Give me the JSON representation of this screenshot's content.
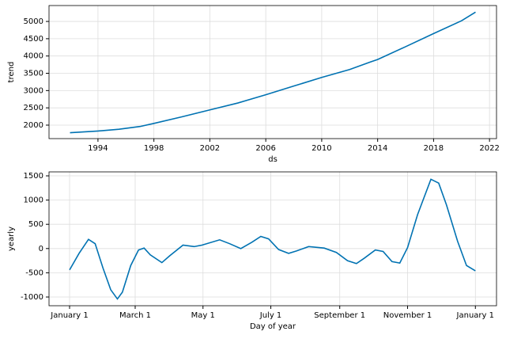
{
  "chart_data": [
    {
      "type": "line",
      "xlabel": "ds",
      "ylabel": "trend",
      "color": "#0072b2",
      "grid": true,
      "x": [
        1992,
        1994,
        1995.5,
        1997,
        1998,
        2000,
        2002,
        2004,
        2006,
        2008,
        2010,
        2012,
        2013.5,
        2014,
        2016,
        2018,
        2020,
        2021
      ],
      "values": [
        1780,
        1830,
        1880,
        1960,
        2050,
        2240,
        2440,
        2640,
        2880,
        3130,
        3380,
        3610,
        3830,
        3900,
        4270,
        4650,
        5020,
        5270
      ],
      "xlim": [
        1990.5,
        2022.5
      ],
      "xticks": [
        1994,
        1998,
        2002,
        2006,
        2010,
        2014,
        2018,
        2022
      ],
      "ylim": [
        1610,
        5460
      ],
      "yticks": [
        2000,
        2500,
        3000,
        3500,
        4000,
        4500,
        5000
      ]
    },
    {
      "type": "line",
      "xlabel": "Day of year",
      "ylabel": "yearly",
      "color": "#0072b2",
      "grid": true,
      "x": [
        0,
        8.5,
        17,
        23,
        30,
        37,
        43,
        47.5,
        55,
        62,
        67,
        72.6,
        83,
        90,
        102,
        112,
        119,
        135,
        144,
        154,
        164,
        172,
        179,
        188,
        197,
        204,
        215,
        229,
        240,
        250,
        258,
        265,
        275,
        282,
        290,
        297,
        304,
        313,
        325,
        332,
        339,
        349,
        357,
        365
      ],
      "values": [
        -440,
        -100,
        190,
        100,
        -400,
        -850,
        -1040,
        -900,
        -350,
        -30,
        10,
        -130,
        -290,
        -150,
        70,
        40,
        70,
        180,
        100,
        0,
        130,
        250,
        200,
        -20,
        -100,
        -50,
        40,
        10,
        -80,
        -250,
        -310,
        -200,
        -30,
        -60,
        -270,
        -300,
        20,
        700,
        1430,
        1350,
        900,
        150,
        -350,
        -460
      ],
      "xlim": [
        -18.5,
        384
      ],
      "xticks": [
        {
          "value": 0,
          "label": "January 1"
        },
        {
          "value": 59,
          "label": "March 1"
        },
        {
          "value": 120,
          "label": "May 1"
        },
        {
          "value": 181,
          "label": "July 1"
        },
        {
          "value": 243,
          "label": "September 1"
        },
        {
          "value": 304,
          "label": "November 1"
        },
        {
          "value": 365,
          "label": "January 1"
        }
      ],
      "ylim": [
        -1180,
        1582
      ],
      "yticks": [
        -1000,
        -500,
        0,
        500,
        1000,
        1500
      ]
    }
  ]
}
